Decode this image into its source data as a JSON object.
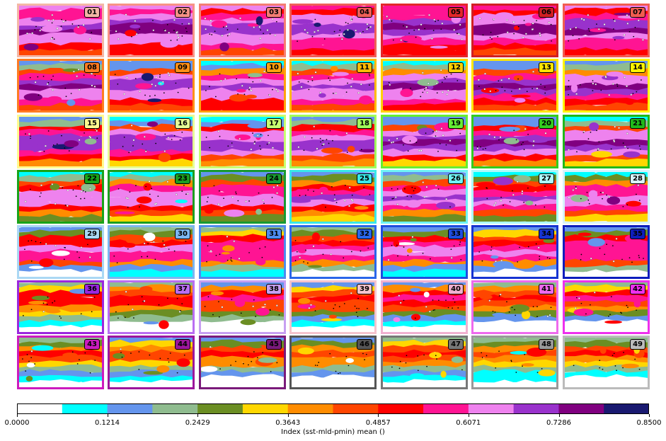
{
  "chart_data": {
    "type": "heatmap",
    "description_layout": "7x7 grid of contour map panels",
    "panels": [
      "01",
      "02",
      "03",
      "04",
      "05",
      "06",
      "07",
      "08",
      "09",
      "10",
      "11",
      "12",
      "13",
      "14",
      "15",
      "16",
      "17",
      "18",
      "19",
      "20",
      "21",
      "22",
      "23",
      "24",
      "25",
      "26",
      "27",
      "28",
      "29",
      "30",
      "31",
      "32",
      "33",
      "34",
      "35",
      "36",
      "37",
      "38",
      "39",
      "40",
      "41",
      "42",
      "43",
      "44",
      "45",
      "46",
      "47",
      "48",
      "49"
    ],
    "panel_colors": [
      "#f4b7a6",
      "#f79286",
      "#f47d73",
      "#ef5f57",
      "#e3272a",
      "#d11f23",
      "#f25c50",
      "#ff7b22",
      "#ff8f17",
      "#ffa10d",
      "#ffbb04",
      "#ffd100",
      "#ffe600",
      "#fff500",
      "#fffa8f",
      "#e6ff96",
      "#c8ff70",
      "#a0ff5a",
      "#66ee33",
      "#33cc1f",
      "#20b81a",
      "#19a419",
      "#1c9e20",
      "#199a31",
      "#39e8e8",
      "#6ff4f5",
      "#aef9fb",
      "#d8f3fb",
      "#aad8f4",
      "#7bb6f0",
      "#4d8cee",
      "#2a66ea",
      "#1f4ddf",
      "#1633d2",
      "#0d1dbd",
      "#9c27df",
      "#b96ef2",
      "#c69ff2",
      "#f5c3cd",
      "#f0b0d0",
      "#ee6aee",
      "#ee30ee",
      "#cc1bbf",
      "#9c169c",
      "#7a1a7a",
      "#555555",
      "#777777",
      "#999999",
      "#bbbbbb"
    ],
    "colorbar": {
      "levels": [
        "#ffffff",
        "#00ffff",
        "#6495ed",
        "#8fbc8f",
        "#6b8e23",
        "#ffd700",
        "#ff8c00",
        "#ff4500",
        "#ff0000",
        "#ff1493",
        "#ee82ee",
        "#9932cc",
        "#800080",
        "#191970"
      ],
      "ticks": [
        "0.0000",
        "0.1214",
        "0.2429",
        "0.3643",
        "0.4857",
        "0.6071",
        "0.7286",
        "0.8500"
      ],
      "range": [
        0,
        0.85
      ],
      "label": "Index (sst-mld-pmin) mean ()"
    }
  }
}
